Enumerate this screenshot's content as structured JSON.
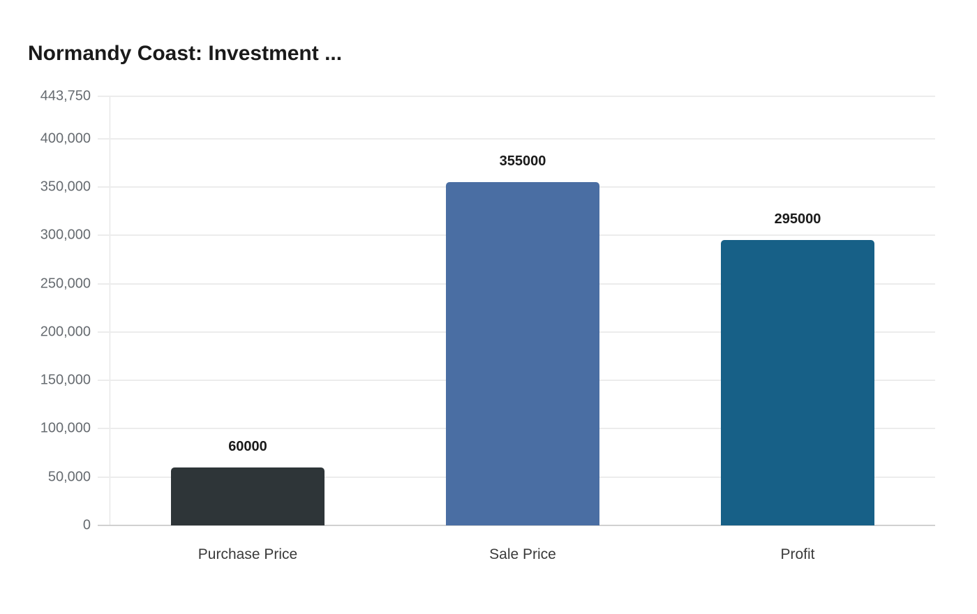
{
  "title": "Normandy Coast: Investment ...",
  "chart_data": {
    "type": "bar",
    "title": "Normandy Coast: Investment ...",
    "categories": [
      "Purchase Price",
      "Sale Price",
      "Profit"
    ],
    "values": [
      60000,
      355000,
      295000
    ],
    "value_labels": [
      "60000",
      "355000",
      "295000"
    ],
    "colors": [
      "#2e3538",
      "#4a6ea3",
      "#176087"
    ],
    "xlabel": "",
    "ylabel": "",
    "ylim": [
      0,
      443750
    ],
    "yticks": [
      0,
      50000,
      100000,
      150000,
      200000,
      250000,
      300000,
      350000,
      400000,
      443750
    ],
    "ytick_labels": [
      "0",
      "50,000",
      "100,000",
      "150,000",
      "200,000",
      "250,000",
      "300,000",
      "350,000",
      "400,000",
      "443,750"
    ],
    "grid": true,
    "legend": "none"
  }
}
